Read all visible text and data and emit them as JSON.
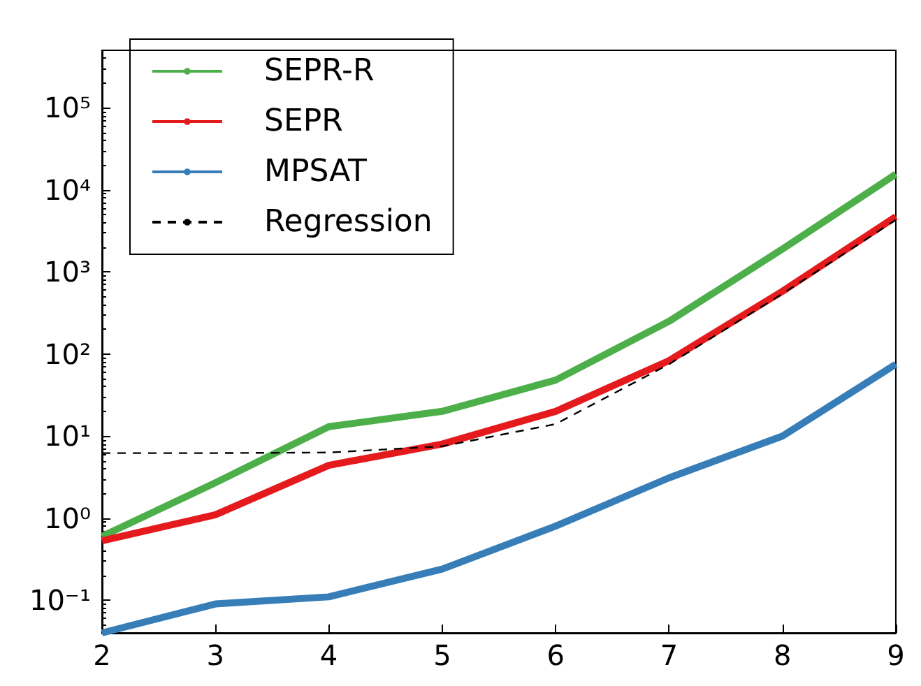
{
  "chart_data": {
    "type": "line",
    "x": [
      2,
      3,
      4,
      5,
      6,
      7,
      8,
      9
    ],
    "series": [
      {
        "name": "SEPR-R",
        "color": "#4daf4a",
        "values": [
          0.6,
          2.7,
          13,
          20,
          48,
          250,
          1900,
          15500
        ]
      },
      {
        "name": "SEPR",
        "color": "#e41a1c",
        "values": [
          0.53,
          1.1,
          4.4,
          8,
          20,
          83,
          580,
          4700
        ]
      },
      {
        "name": "MPSAT",
        "color": "#377eb8",
        "values": [
          0.04,
          0.09,
          0.11,
          0.24,
          0.8,
          3.1,
          10,
          75
        ]
      },
      {
        "name": "Regression",
        "color": "#000000",
        "line_style": "dashed",
        "values": [
          6.2,
          6.2,
          6.3,
          7.5,
          14,
          75,
          540,
          4300
        ]
      }
    ],
    "xlim": [
      2,
      9
    ],
    "xticks": [
      2,
      3,
      4,
      5,
      6,
      7,
      8,
      9
    ],
    "ylim": [
      0.04,
      500000
    ],
    "yticks": [
      {
        "value": 0.1,
        "label": "10⁻¹"
      },
      {
        "value": 1,
        "label": "10⁰"
      },
      {
        "value": 10,
        "label": "10¹"
      },
      {
        "value": 100,
        "label": "10²"
      },
      {
        "value": 1000,
        "label": "10³"
      },
      {
        "value": 10000,
        "label": "10⁴"
      },
      {
        "value": 100000,
        "label": "10⁵"
      }
    ],
    "log": "y",
    "grid": false,
    "legend": "top left",
    "marker": "none",
    "line_style": "solid"
  }
}
